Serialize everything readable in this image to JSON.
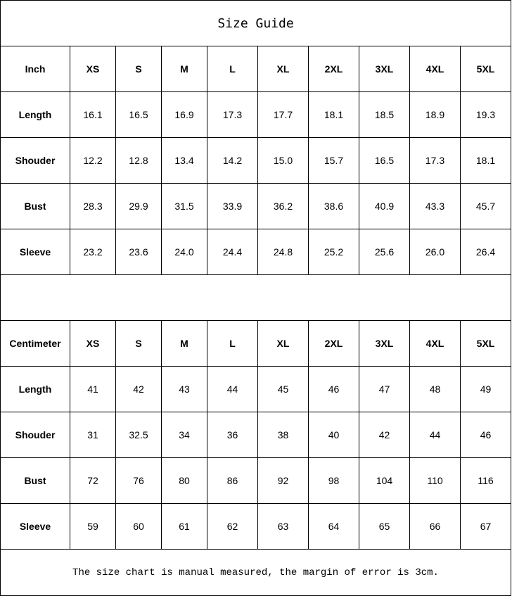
{
  "title": "Size Guide",
  "sizes": [
    "XS",
    "S",
    "M",
    "L",
    "XL",
    "2XL",
    "3XL",
    "4XL",
    "5XL"
  ],
  "inch": {
    "unit_label": "Inch",
    "rows": [
      {
        "label": "Length",
        "values": [
          "16.1",
          "16.5",
          "16.9",
          "17.3",
          "17.7",
          "18.1",
          "18.5",
          "18.9",
          "19.3"
        ]
      },
      {
        "label": "Shouder",
        "values": [
          "12.2",
          "12.8",
          "13.4",
          "14.2",
          "15.0",
          "15.7",
          "16.5",
          "17.3",
          "18.1"
        ]
      },
      {
        "label": "Bust",
        "values": [
          "28.3",
          "29.9",
          "31.5",
          "33.9",
          "36.2",
          "38.6",
          "40.9",
          "43.3",
          "45.7"
        ]
      },
      {
        "label": "Sleeve",
        "values": [
          "23.2",
          "23.6",
          "24.0",
          "24.4",
          "24.8",
          "25.2",
          "25.6",
          "26.0",
          "26.4"
        ]
      }
    ]
  },
  "centimeter": {
    "unit_label": "Centimeter",
    "rows": [
      {
        "label": "Length",
        "values": [
          "41",
          "42",
          "43",
          "44",
          "45",
          "46",
          "47",
          "48",
          "49"
        ]
      },
      {
        "label": "Shouder",
        "values": [
          "31",
          "32.5",
          "34",
          "36",
          "38",
          "40",
          "42",
          "44",
          "46"
        ]
      },
      {
        "label": "Bust",
        "values": [
          "72",
          "76",
          "80",
          "86",
          "92",
          "98",
          "104",
          "110",
          "116"
        ]
      },
      {
        "label": "Sleeve",
        "values": [
          "59",
          "60",
          "61",
          "62",
          "63",
          "64",
          "65",
          "66",
          "67"
        ]
      }
    ]
  },
  "note": "The size chart is manual measured, the margin of error is 3cm."
}
